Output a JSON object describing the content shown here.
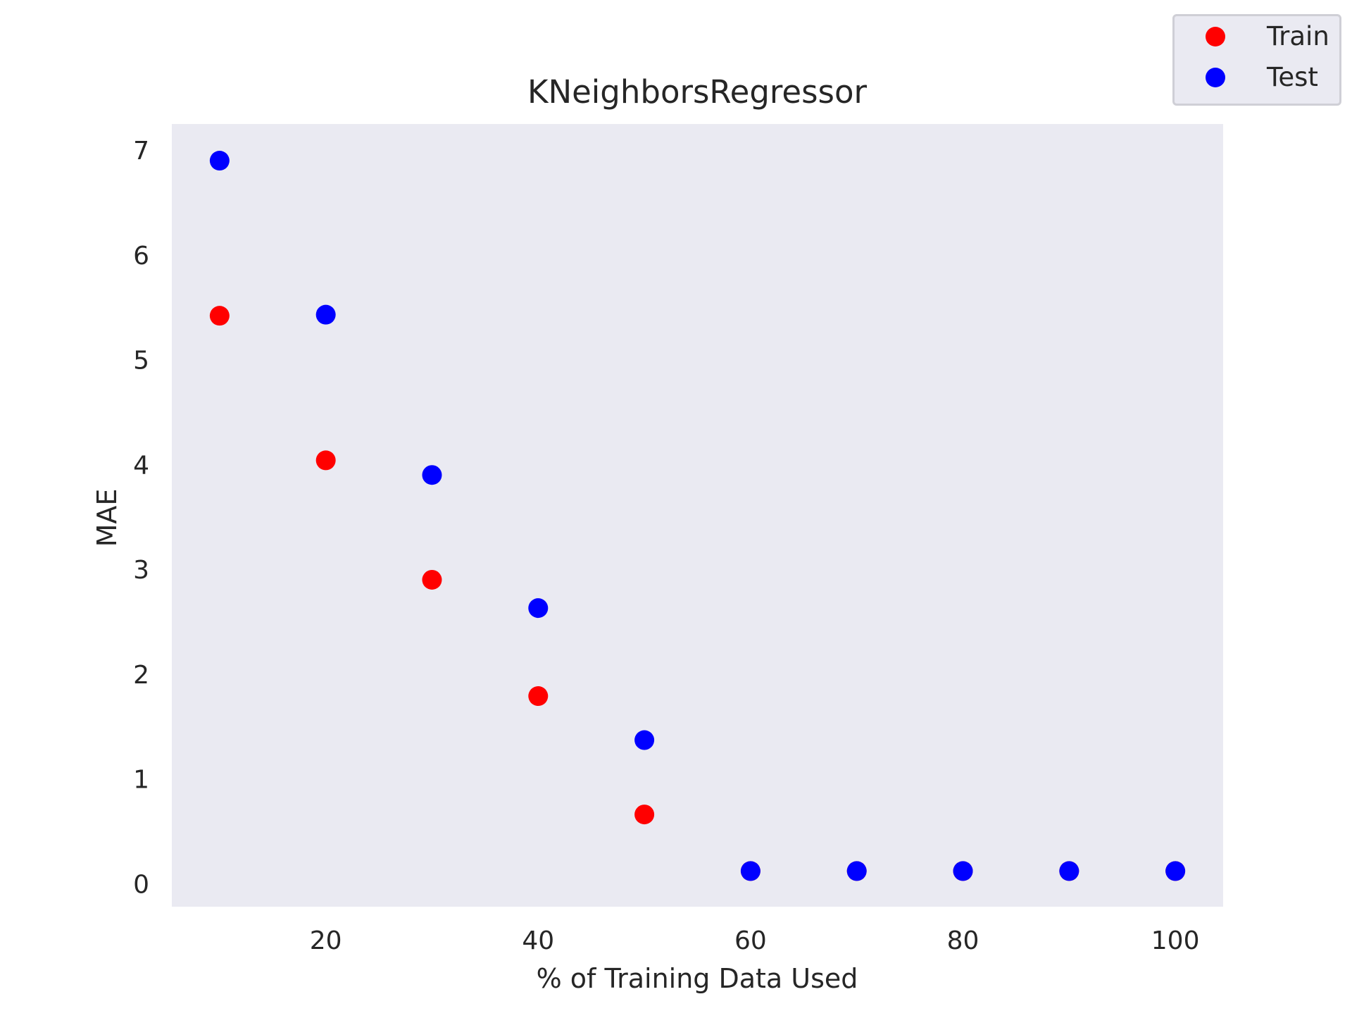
{
  "chart_data": {
    "type": "scatter",
    "title": "KNeighborsRegressor",
    "xlabel": "% of Training Data Used",
    "ylabel": "MAE",
    "xlim": [
      5.5,
      104.5
    ],
    "ylim": [
      -0.22,
      7.25
    ],
    "xticks": [
      20,
      40,
      60,
      80,
      100
    ],
    "yticks": [
      0,
      1,
      2,
      3,
      4,
      5,
      6,
      7
    ],
    "grid": false,
    "legend_position": "top-right",
    "series": [
      {
        "name": "Train",
        "color": "#ff0000",
        "x": [
          10,
          20,
          30,
          40,
          50,
          60,
          70,
          80,
          90,
          100
        ],
        "y": [
          5.42,
          4.04,
          2.9,
          1.79,
          0.66,
          0.12,
          0.12,
          0.12,
          0.12,
          0.12
        ]
      },
      {
        "name": "Test",
        "color": "#0000ff",
        "x": [
          10,
          20,
          30,
          40,
          50,
          60,
          70,
          80,
          90,
          100
        ],
        "y": [
          6.9,
          5.43,
          3.9,
          2.63,
          1.37,
          0.12,
          0.12,
          0.12,
          0.12,
          0.12
        ]
      }
    ]
  }
}
